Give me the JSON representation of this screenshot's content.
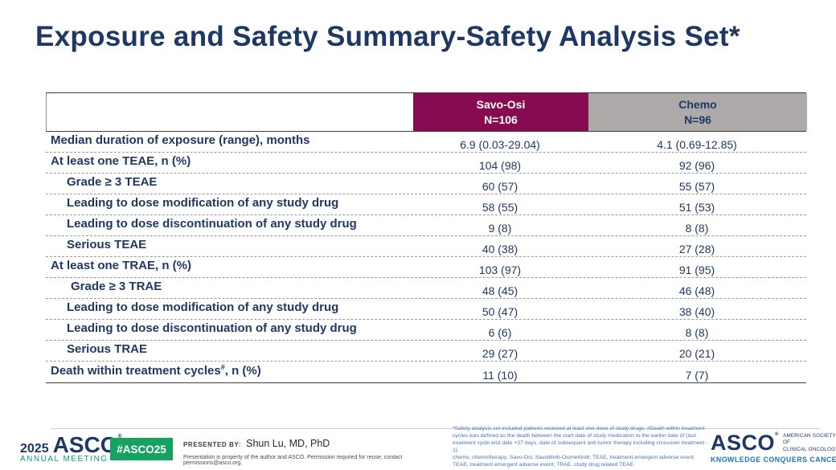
{
  "title": "Exposure and Safety Summary-Safety Analysis Set*",
  "colors": {
    "title_navy": "#1E3765",
    "savo_header_bg": "#870B51",
    "chemo_header_bg": "#AEAAAA",
    "row_text_navy": "#1F3864",
    "badge_green": "#15A362",
    "annual_meeting_teal": "#0C9B78",
    "footnote_blue": "#4A73B8",
    "tagline_blue": "#1B75BC"
  },
  "table": {
    "header": {
      "savo_name": "Savo-Osi",
      "savo_n": "N=106",
      "chemo_name": "Chemo",
      "chemo_n": "N=96"
    },
    "rows": [
      {
        "label": "Median duration of exposure (range), months",
        "savo": "6.9 (0.03-29.04)",
        "chemo": "4.1 (0.69-12.85)"
      },
      {
        "label": "At least one TEAE, n (%)",
        "savo": "104 (98)",
        "chemo": "92 (96)"
      },
      {
        "label": "Grade ≥ 3 TEAE",
        "savo": "60 (57)",
        "chemo": "55 (57)"
      },
      {
        "label": "Leading to dose modification of any study drug",
        "savo": "58 (55)",
        "chemo": "51 (53)"
      },
      {
        "label": "Leading to dose discontinuation of any study drug",
        "savo": "9 (8)",
        "chemo": "8 (8)"
      },
      {
        "label": "Serious TEAE",
        "savo": "40 (38)",
        "chemo": "27 (28)"
      },
      {
        "label": "At least one TRAE, n (%)",
        "savo": "103 (97)",
        "chemo": "91 (95)"
      },
      {
        "label": "Grade ≥ 3 TRAE",
        "savo": "48 (45)",
        "chemo": "46 (48)"
      },
      {
        "label": "Leading to dose modification of any study drug",
        "savo": "50 (47)",
        "chemo": "38 (40)"
      },
      {
        "label": "Leading to dose discontinuation of any study drug",
        "savo": "6 (6)",
        "chemo": "8 (8)"
      },
      {
        "label": "Serious TRAE",
        "savo": "29 (27)",
        "chemo": "20 (21)"
      },
      {
        "label": "Death within treatment cycles",
        "sup": "#",
        "suffix": ", n (%)",
        "savo": "11 (10)",
        "chemo": "7 (7)"
      }
    ]
  },
  "footer": {
    "meeting_year": "2025",
    "meeting_org": "ASCO",
    "meeting_reg": "®",
    "meeting_sub": "ANNUAL MEETING",
    "hashtag": "#ASCO25",
    "presented_by_label": "PRESENTED BY:",
    "presenter": "Shun Lu, MD, PhD",
    "disclaimer": "Presentation is property of the author and ASCO. Permission required for reuse; contact permissions@asco.org.",
    "footnote1": "*Safety analysis set included patients received at least one dose of study drugs. #Death within treatment cycles was defined as the death between the start date of study medication to the earlier date of (last treatment cycle end date +37 days, date of subsequent anti-tumor therapy including crossover treatment - 1).",
    "footnote2": "chemo, chemotherapy; Savo-Osi, Savolitinib-Osimertinib; TEAE, treatment-emergent adverse event; TEAE, treatment emergent adverse event; TRAE, study drug related TEAE.",
    "logo": {
      "org": "ASCO",
      "reg": "®",
      "society_line1": "AMERICAN SOCIETY OF",
      "society_line2": "CLINICAL ONCOLOGY",
      "tagline": "KNOWLEDGE CONQUERS CANCER"
    }
  }
}
